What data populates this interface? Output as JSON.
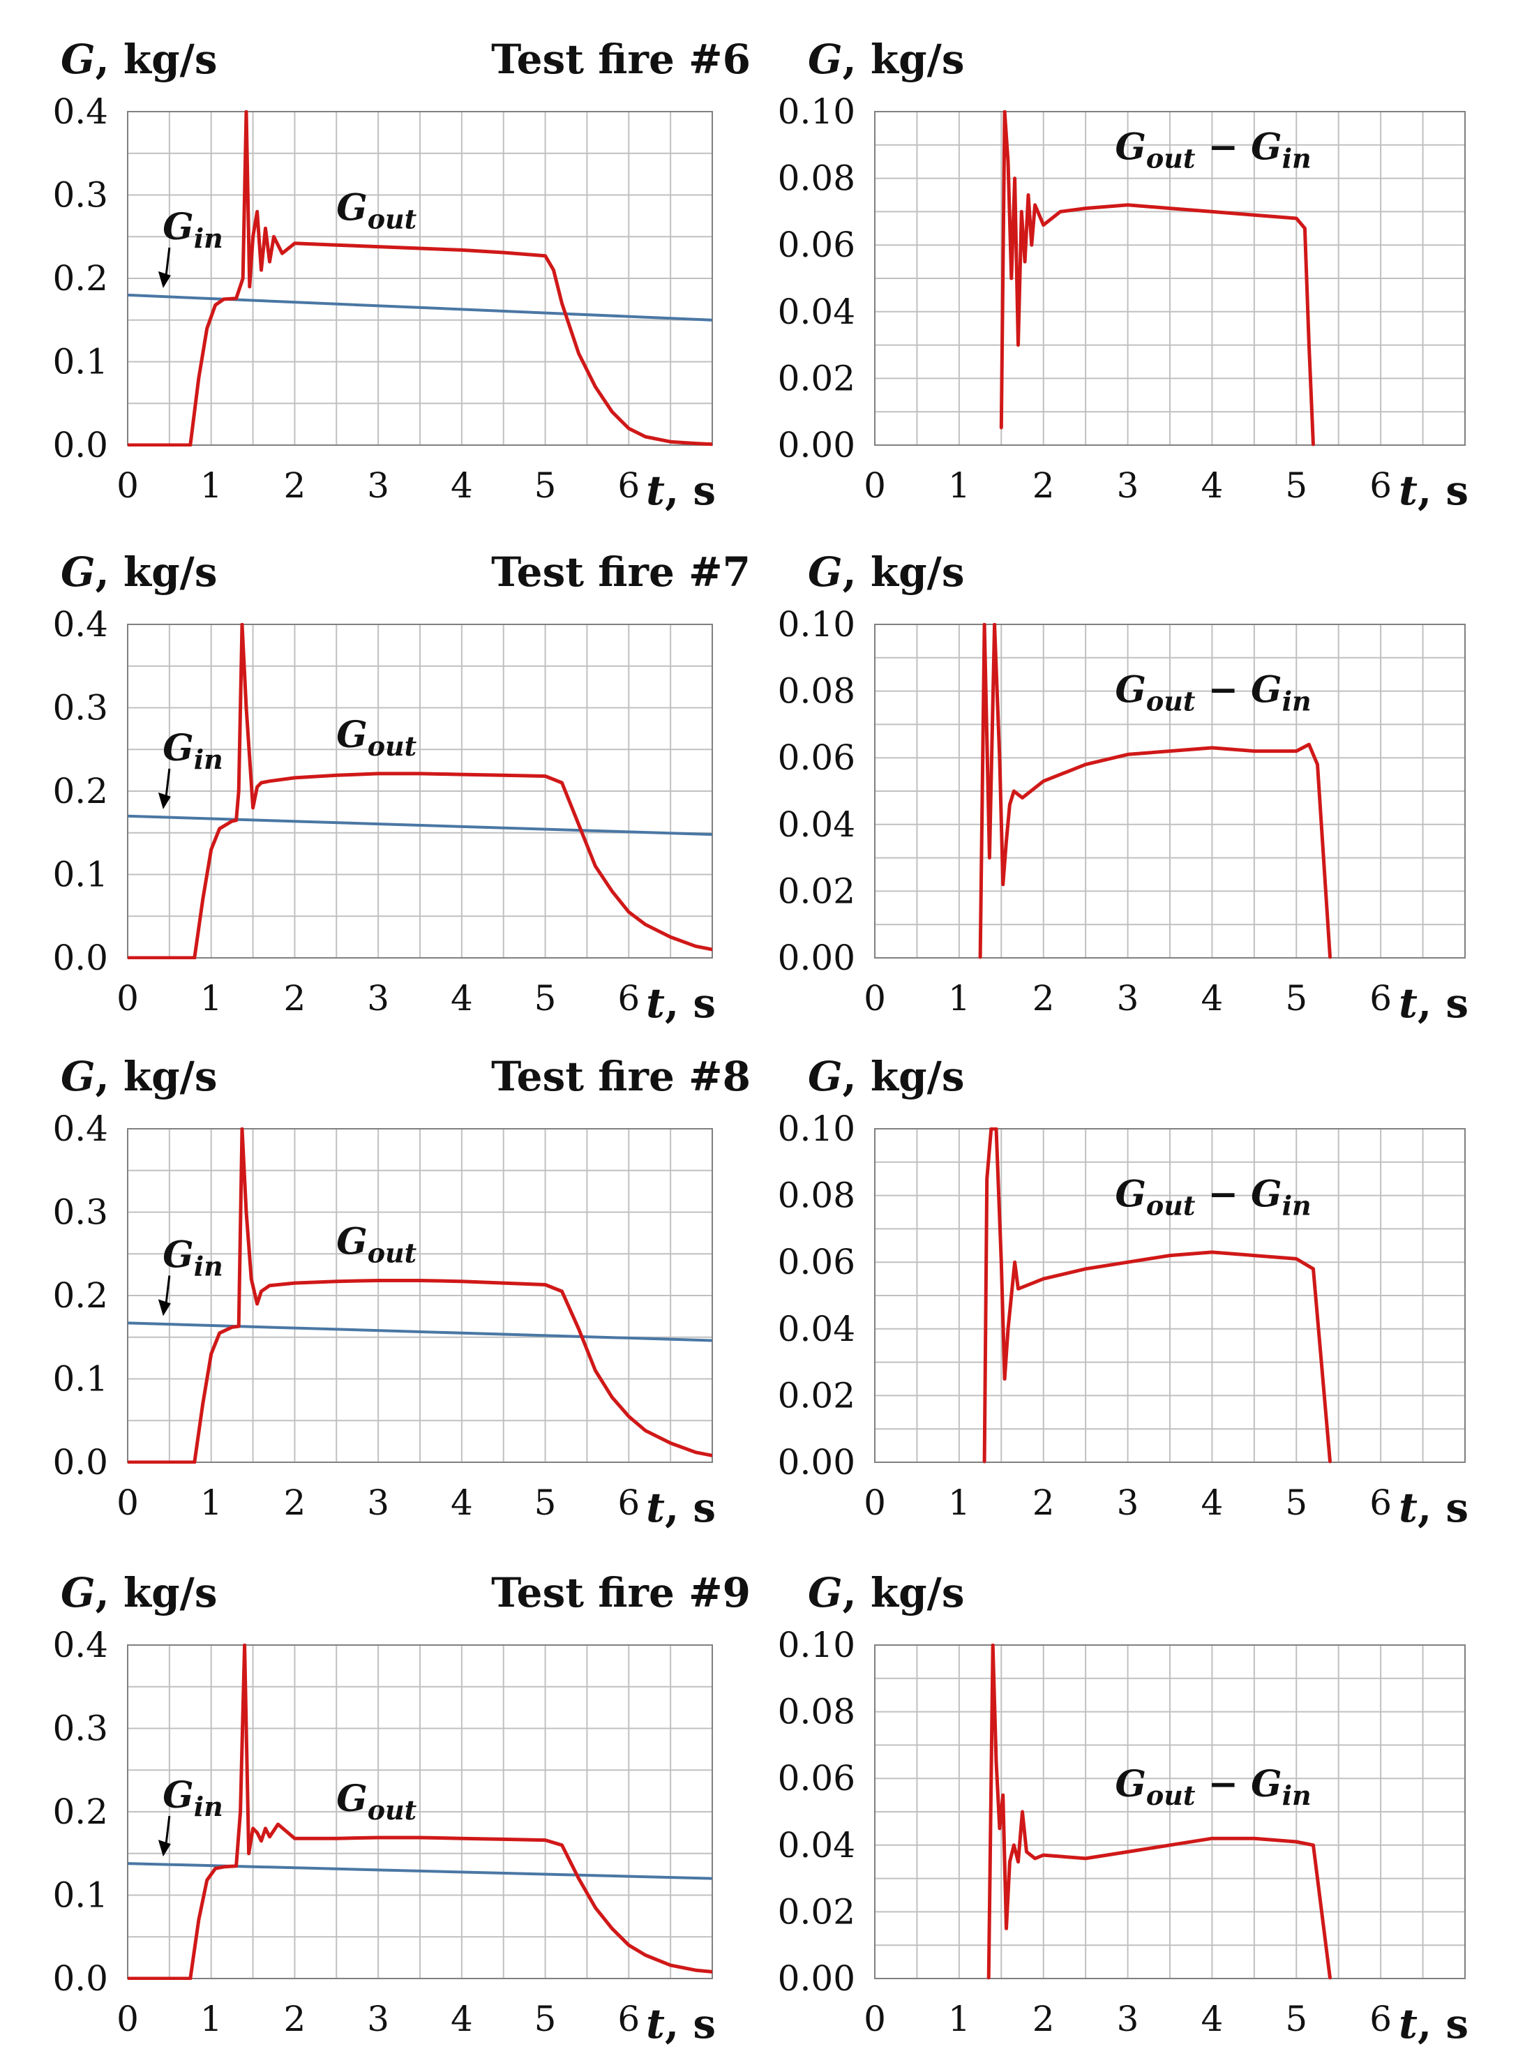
{
  "figure": {
    "colors": {
      "g_out": "#d01818",
      "g_in": "#4a77a4",
      "grid": "#c0c0c0",
      "axis": "#808080"
    },
    "x_axis_label_var": "t",
    "x_axis_label_unit": ", s",
    "y_axis_label_var": "G",
    "y_axis_label_unit": ", kg/s",
    "label_g_in": "G",
    "label_g_in_sub": "in",
    "label_g_out": "G",
    "label_g_out_sub": "out",
    "label_diff_a": "G",
    "label_diff_a_sub": "out",
    "label_diff_minus": " − ",
    "label_diff_b": "G",
    "label_diff_b_sub": "in"
  },
  "chart_data": [
    {
      "type": "line",
      "test": "Test fire #6",
      "title": "Test fire #6",
      "xlabel": "t, s",
      "ylabel": "G, kg/s",
      "xlim": [
        0,
        7
      ],
      "ylim": [
        0,
        0.4
      ],
      "x_ticks": [
        "0",
        "1",
        "2",
        "3",
        "4",
        "5",
        "6"
      ],
      "y_ticks": [
        "0.0",
        "0.1",
        "0.2",
        "0.3",
        "0.4"
      ],
      "series": [
        {
          "name": "G_in",
          "x": [
            0,
            7
          ],
          "y": [
            0.18,
            0.15
          ]
        },
        {
          "name": "G_out",
          "x": [
            0,
            0.75,
            0.85,
            0.95,
            1.05,
            1.15,
            1.3,
            1.38,
            1.42,
            1.46,
            1.5,
            1.55,
            1.6,
            1.65,
            1.7,
            1.75,
            1.85,
            2.0,
            2.5,
            3.0,
            3.5,
            4.0,
            4.5,
            5.0,
            5.1,
            5.2,
            5.4,
            5.6,
            5.8,
            6.0,
            6.2,
            6.5,
            6.8,
            7.0
          ],
          "y": [
            0,
            0,
            0.08,
            0.14,
            0.168,
            0.175,
            0.176,
            0.2,
            0.4,
            0.19,
            0.25,
            0.28,
            0.21,
            0.26,
            0.22,
            0.25,
            0.23,
            0.242,
            0.24,
            0.238,
            0.236,
            0.234,
            0.231,
            0.227,
            0.21,
            0.17,
            0.11,
            0.07,
            0.04,
            0.02,
            0.01,
            0.004,
            0.002,
            0.001
          ]
        }
      ]
    },
    {
      "type": "line",
      "test": "Test fire #6",
      "xlabel": "t, s",
      "ylabel": "G, kg/s",
      "xlim": [
        0,
        7
      ],
      "ylim": [
        0,
        0.1
      ],
      "x_ticks": [
        "0",
        "1",
        "2",
        "3",
        "4",
        "5",
        "6"
      ],
      "y_ticks": [
        "0.00",
        "0.02",
        "0.04",
        "0.06",
        "0.08",
        "0.10"
      ],
      "series": [
        {
          "name": "G_out - G_in",
          "x": [
            1.5,
            1.54,
            1.58,
            1.62,
            1.66,
            1.7,
            1.74,
            1.78,
            1.82,
            1.86,
            1.9,
            2.0,
            2.2,
            2.5,
            3.0,
            3.5,
            4.0,
            4.5,
            5.0,
            5.1,
            5.15,
            5.2
          ],
          "y": [
            0.005,
            0.1,
            0.085,
            0.05,
            0.08,
            0.03,
            0.07,
            0.055,
            0.075,
            0.06,
            0.072,
            0.066,
            0.07,
            0.071,
            0.072,
            0.071,
            0.07,
            0.069,
            0.068,
            0.065,
            0.03,
            0.0
          ]
        }
      ]
    },
    {
      "type": "line",
      "test": "Test fire #7",
      "title": "Test fire #7",
      "xlabel": "t, s",
      "ylabel": "G, kg/s",
      "xlim": [
        0,
        7
      ],
      "ylim": [
        0,
        0.4
      ],
      "x_ticks": [
        "0",
        "1",
        "2",
        "3",
        "4",
        "5",
        "6"
      ],
      "y_ticks": [
        "0.0",
        "0.1",
        "0.2",
        "0.3",
        "0.4"
      ],
      "series": [
        {
          "name": "G_in",
          "x": [
            0,
            7
          ],
          "y": [
            0.17,
            0.148
          ]
        },
        {
          "name": "G_out",
          "x": [
            0,
            0.8,
            0.9,
            1.0,
            1.1,
            1.25,
            1.3,
            1.33,
            1.37,
            1.42,
            1.5,
            1.55,
            1.6,
            1.7,
            2.0,
            2.5,
            3.0,
            3.5,
            4.0,
            4.5,
            5.0,
            5.2,
            5.4,
            5.6,
            5.8,
            6.0,
            6.2,
            6.5,
            6.8,
            7.0
          ],
          "y": [
            0,
            0,
            0.07,
            0.13,
            0.155,
            0.164,
            0.165,
            0.2,
            0.4,
            0.3,
            0.18,
            0.205,
            0.21,
            0.212,
            0.216,
            0.219,
            0.221,
            0.221,
            0.22,
            0.219,
            0.218,
            0.21,
            0.16,
            0.11,
            0.08,
            0.055,
            0.04,
            0.025,
            0.014,
            0.01
          ]
        }
      ]
    },
    {
      "type": "line",
      "test": "Test fire #7",
      "xlabel": "t, s",
      "ylabel": "G, kg/s",
      "xlim": [
        0,
        7
      ],
      "ylim": [
        0,
        0.1
      ],
      "x_ticks": [
        "0",
        "1",
        "2",
        "3",
        "4",
        "5",
        "6"
      ],
      "y_ticks": [
        "0.00",
        "0.02",
        "0.04",
        "0.06",
        "0.08",
        "0.10"
      ],
      "series": [
        {
          "name": "G_out - G_in",
          "x": [
            1.25,
            1.3,
            1.36,
            1.42,
            1.48,
            1.52,
            1.56,
            1.6,
            1.65,
            1.75,
            2.0,
            2.5,
            3.0,
            3.5,
            4.0,
            4.5,
            5.0,
            5.15,
            5.25,
            5.4
          ],
          "y": [
            0.0,
            0.1,
            0.03,
            0.1,
            0.06,
            0.022,
            0.035,
            0.046,
            0.05,
            0.048,
            0.053,
            0.058,
            0.061,
            0.062,
            0.063,
            0.062,
            0.062,
            0.064,
            0.058,
            0.0
          ]
        }
      ]
    },
    {
      "type": "line",
      "test": "Test fire #8",
      "title": "Test fire #8",
      "xlabel": "t, s",
      "ylabel": "G, kg/s",
      "xlim": [
        0,
        7
      ],
      "ylim": [
        0,
        0.4
      ],
      "x_ticks": [
        "0",
        "1",
        "2",
        "3",
        "4",
        "5",
        "6"
      ],
      "y_ticks": [
        "0.0",
        "0.1",
        "0.2",
        "0.3",
        "0.4"
      ],
      "series": [
        {
          "name": "G_in",
          "x": [
            0,
            7
          ],
          "y": [
            0.167,
            0.146
          ]
        },
        {
          "name": "G_out",
          "x": [
            0,
            0.8,
            0.9,
            1.0,
            1.1,
            1.25,
            1.33,
            1.37,
            1.42,
            1.48,
            1.55,
            1.6,
            1.7,
            2.0,
            2.5,
            3.0,
            3.5,
            4.0,
            4.5,
            5.0,
            5.2,
            5.4,
            5.6,
            5.8,
            6.0,
            6.2,
            6.5,
            6.8,
            7.0
          ],
          "y": [
            0,
            0,
            0.07,
            0.13,
            0.155,
            0.162,
            0.163,
            0.4,
            0.3,
            0.22,
            0.19,
            0.205,
            0.212,
            0.215,
            0.217,
            0.218,
            0.218,
            0.217,
            0.215,
            0.213,
            0.205,
            0.16,
            0.11,
            0.078,
            0.055,
            0.038,
            0.023,
            0.012,
            0.008
          ]
        }
      ]
    },
    {
      "type": "line",
      "test": "Test fire #8",
      "xlabel": "t, s",
      "ylabel": "G, kg/s",
      "xlim": [
        0,
        7
      ],
      "ylim": [
        0,
        0.1
      ],
      "x_ticks": [
        "0",
        "1",
        "2",
        "3",
        "4",
        "5",
        "6"
      ],
      "y_ticks": [
        "0.00",
        "0.02",
        "0.04",
        "0.06",
        "0.08",
        "0.10"
      ],
      "series": [
        {
          "name": "G_out - G_in",
          "x": [
            1.3,
            1.33,
            1.38,
            1.44,
            1.5,
            1.54,
            1.58,
            1.62,
            1.66,
            1.7,
            1.8,
            2.0,
            2.5,
            3.0,
            3.5,
            4.0,
            4.5,
            5.0,
            5.2,
            5.4
          ],
          "y": [
            0.0,
            0.085,
            0.1,
            0.1,
            0.06,
            0.025,
            0.04,
            0.05,
            0.06,
            0.052,
            0.053,
            0.055,
            0.058,
            0.06,
            0.062,
            0.063,
            0.062,
            0.061,
            0.058,
            0.0
          ]
        }
      ]
    },
    {
      "type": "line",
      "test": "Test fire #9",
      "title": "Test fire #9",
      "xlabel": "t, s",
      "ylabel": "G, kg/s",
      "xlim": [
        0,
        7
      ],
      "ylim": [
        0,
        0.4
      ],
      "x_ticks": [
        "0",
        "1",
        "2",
        "3",
        "4",
        "5",
        "6"
      ],
      "y_ticks": [
        "0.0",
        "0.1",
        "0.2",
        "0.3",
        "0.4"
      ],
      "series": [
        {
          "name": "G_in",
          "x": [
            0,
            7
          ],
          "y": [
            0.138,
            0.12
          ]
        },
        {
          "name": "G_out",
          "x": [
            0,
            0.75,
            0.85,
            0.95,
            1.05,
            1.15,
            1.3,
            1.35,
            1.4,
            1.45,
            1.5,
            1.55,
            1.6,
            1.65,
            1.7,
            1.8,
            2.0,
            2.5,
            3.0,
            3.5,
            4.0,
            4.5,
            5.0,
            5.2,
            5.4,
            5.6,
            5.8,
            6.0,
            6.2,
            6.5,
            6.8,
            7.0
          ],
          "y": [
            0,
            0,
            0.07,
            0.118,
            0.132,
            0.134,
            0.135,
            0.2,
            0.4,
            0.15,
            0.18,
            0.175,
            0.165,
            0.18,
            0.17,
            0.185,
            0.168,
            0.168,
            0.169,
            0.169,
            0.168,
            0.167,
            0.166,
            0.16,
            0.12,
            0.085,
            0.06,
            0.04,
            0.028,
            0.016,
            0.01,
            0.008
          ]
        }
      ]
    },
    {
      "type": "line",
      "test": "Test fire #9",
      "xlabel": "t, s",
      "ylabel": "G, kg/s",
      "xlim": [
        0,
        7
      ],
      "ylim": [
        0,
        0.1
      ],
      "x_ticks": [
        "0",
        "1",
        "2",
        "3",
        "4",
        "5",
        "6"
      ],
      "y_ticks": [
        "0.00",
        "0.02",
        "0.04",
        "0.06",
        "0.08",
        "0.10"
      ],
      "series": [
        {
          "name": "G_out - G_in",
          "x": [
            1.35,
            1.4,
            1.44,
            1.48,
            1.52,
            1.56,
            1.6,
            1.65,
            1.7,
            1.75,
            1.8,
            1.9,
            2.0,
            2.5,
            3.0,
            3.5,
            4.0,
            4.5,
            5.0,
            5.2,
            5.4
          ],
          "y": [
            0.0,
            0.1,
            0.065,
            0.045,
            0.055,
            0.015,
            0.035,
            0.04,
            0.035,
            0.05,
            0.038,
            0.036,
            0.037,
            0.036,
            0.038,
            0.04,
            0.042,
            0.042,
            0.041,
            0.04,
            0.0
          ]
        }
      ]
    }
  ]
}
